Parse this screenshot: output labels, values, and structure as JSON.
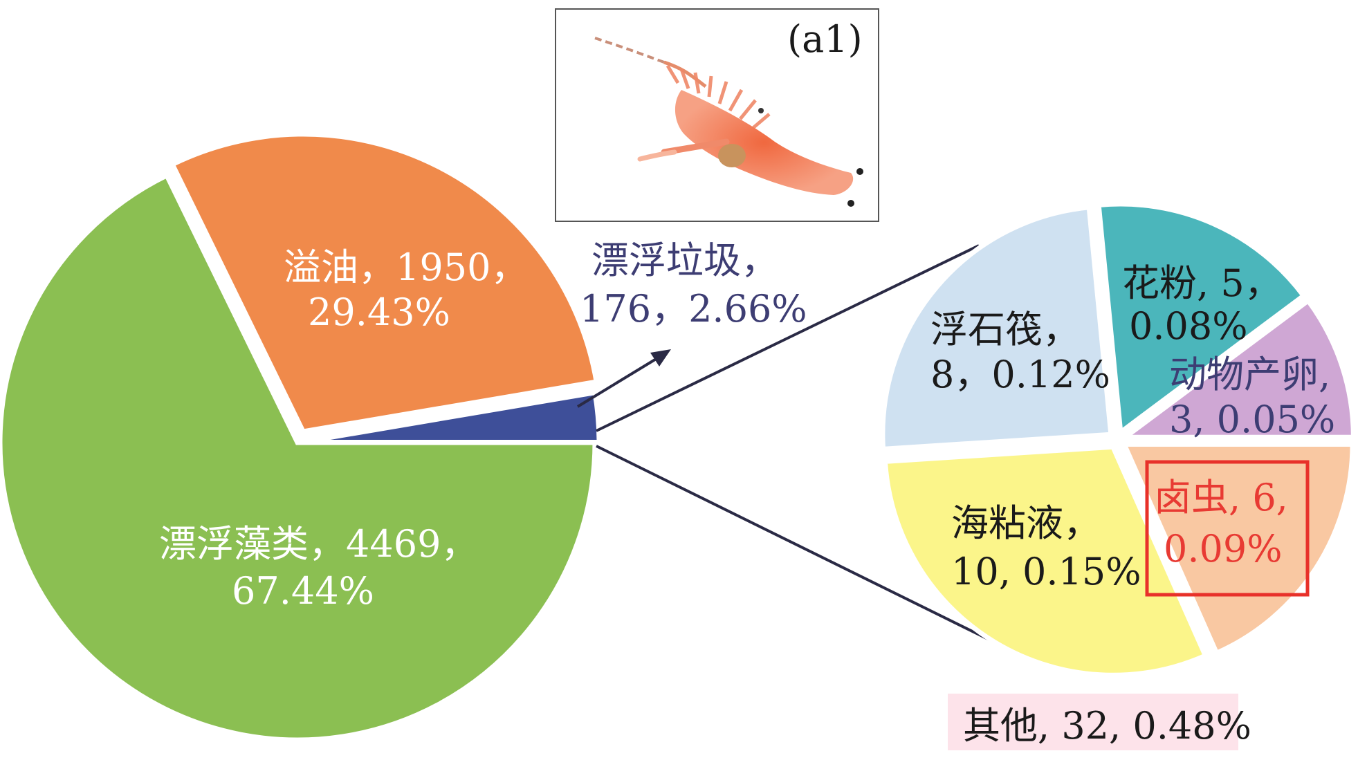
{
  "chart_data": [
    {
      "type": "pie",
      "title": "",
      "slices": [
        {
          "name": "漂浮藻类",
          "count": 4469,
          "percent": 67.44,
          "color": "#8bbf52",
          "text_color": "#ffffff",
          "label_line1": "漂浮藻类，4469，",
          "label_line2": "67.44%"
        },
        {
          "name": "溢油",
          "count": 1950,
          "percent": 29.43,
          "color": "#f08a4b",
          "text_color": "#ffffff",
          "label_line1": "溢油，1950，",
          "label_line2": "29.43%"
        },
        {
          "name": "漂浮垃圾",
          "count": 176,
          "percent": 2.66,
          "color": "#3e4f99",
          "text_color": "#3d3d73",
          "label_line1": "漂浮垃圾，",
          "label_line2": "176，2.66%"
        }
      ]
    },
    {
      "type": "pie",
      "title": "",
      "slices": [
        {
          "name": "浮石筏",
          "count": 8,
          "percent": 0.12,
          "color": "#cfe1f1",
          "text_color": "#1a1a1a",
          "label_line1": "浮石筏，",
          "label_line2": "8，0.12%"
        },
        {
          "name": "花粉",
          "count": 5,
          "percent": 0.08,
          "color": "#4bb6bb",
          "text_color": "#1a1a1a",
          "label_line1": "花粉, 5，",
          "label_line2": "0.08%"
        },
        {
          "name": "动物产卵",
          "count": 3,
          "percent": 0.05,
          "color": "#cfa7d4",
          "text_color": "#3d3d73",
          "label_line1": "动物产卵,",
          "label_line2": "3, 0.05%"
        },
        {
          "name": "卤虫",
          "count": 6,
          "percent": 0.09,
          "color": "#f9c8a2",
          "text_color": "#e83a33",
          "label_line1": "卤虫, 6,",
          "label_line2": "0.09%"
        },
        {
          "name": "海粘液",
          "count": 10,
          "percent": 0.15,
          "color": "#fbf58a",
          "text_color": "#1a1a1a",
          "label_line1": "海粘液，",
          "label_line2": "10, 0.15%"
        }
      ],
      "caption": "其他, 32, 0.48%"
    }
  ],
  "inset": {
    "label": "(a1)"
  },
  "colors": {
    "caption_bg": "#fde3ea",
    "highlight_box": "#e8312a",
    "connector": "#2a2a45"
  }
}
